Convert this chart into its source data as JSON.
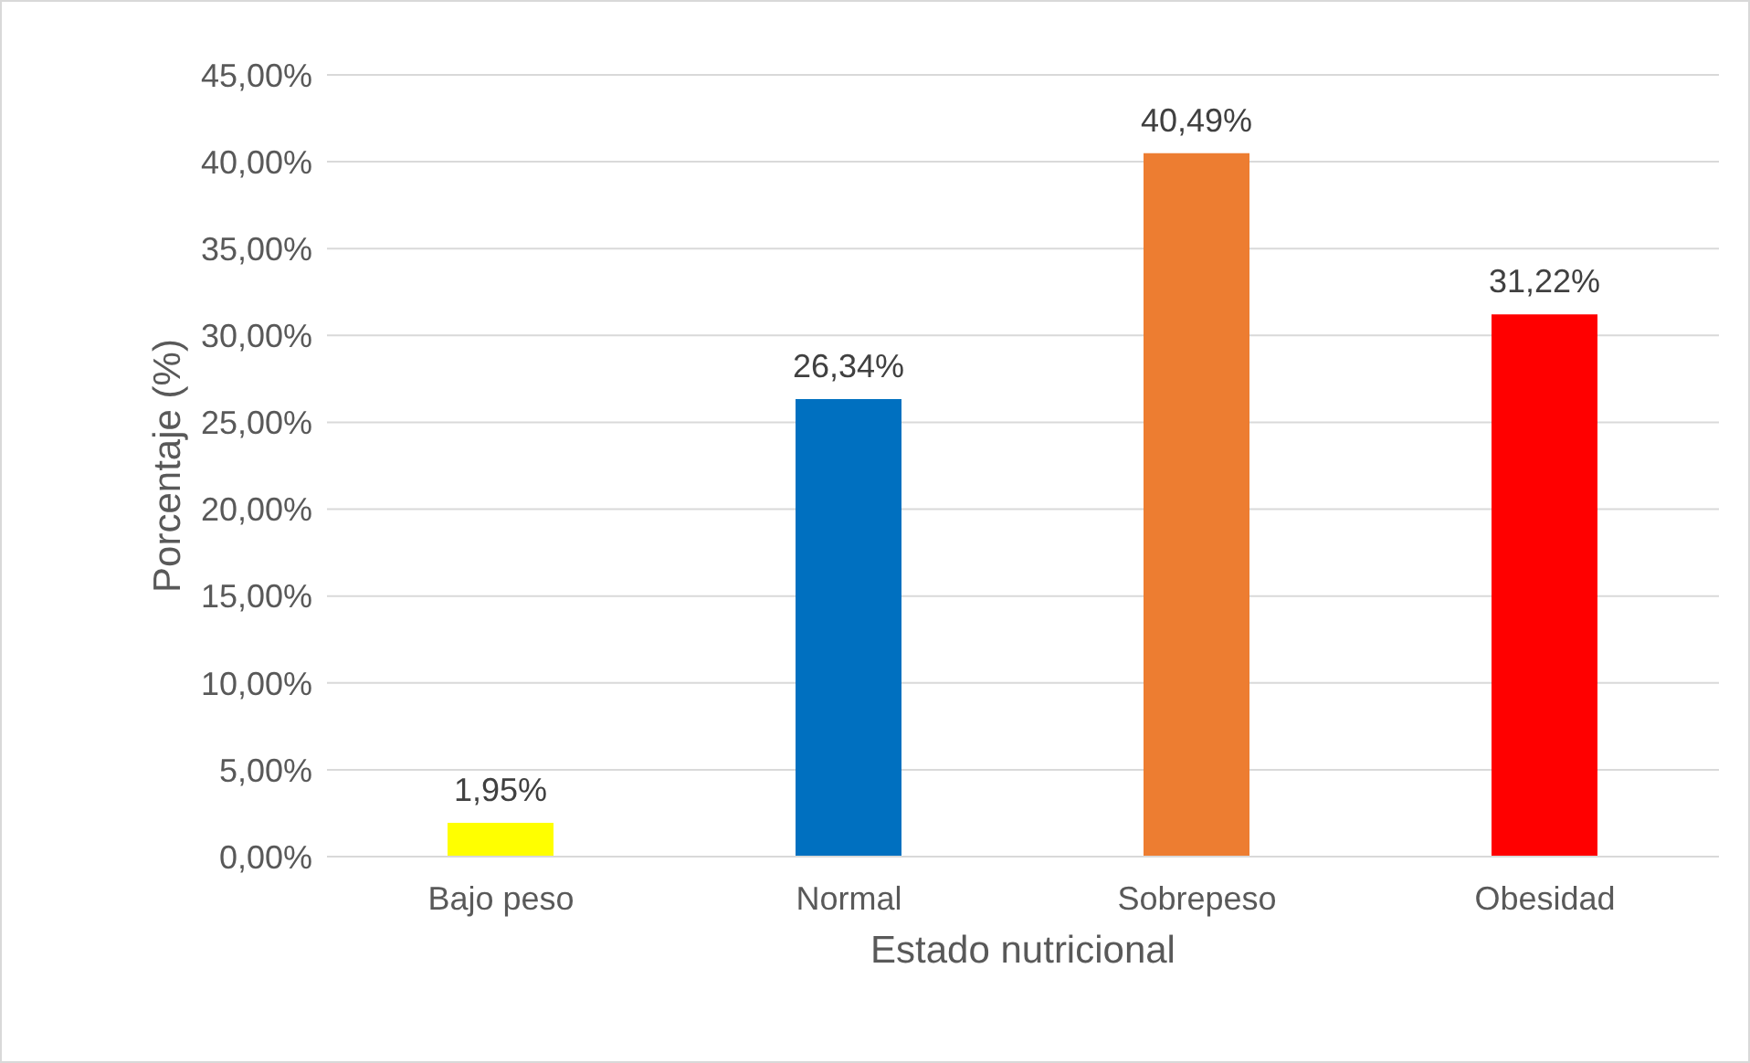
{
  "chart_data": {
    "type": "bar",
    "xlabel": "Estado nutricional",
    "ylabel": "Porcentaje (%)",
    "categories": [
      "Bajo peso",
      "Normal",
      "Sobrepeso",
      "Obesidad"
    ],
    "values": [
      1.95,
      26.34,
      40.49,
      31.22
    ],
    "colors": [
      "#ffff00",
      "#0070c0",
      "#ed7d31",
      "#ff0000"
    ],
    "value_labels": [
      "1,95%",
      "26,34%",
      "40,49%",
      "31,22%"
    ],
    "ylim": [
      0,
      45
    ],
    "yticks": [
      {
        "value": 0,
        "label": "0,00%"
      },
      {
        "value": 5,
        "label": "5,00%"
      },
      {
        "value": 10,
        "label": "10,00%"
      },
      {
        "value": 15,
        "label": "15,00%"
      },
      {
        "value": 20,
        "label": "20,00%"
      },
      {
        "value": 25,
        "label": "25,00%"
      },
      {
        "value": 30,
        "label": "30,00%"
      },
      {
        "value": 35,
        "label": "35,00%"
      },
      {
        "value": 40,
        "label": "40,00%"
      },
      {
        "value": 45,
        "label": "45,00%"
      }
    ],
    "grid": "y"
  }
}
